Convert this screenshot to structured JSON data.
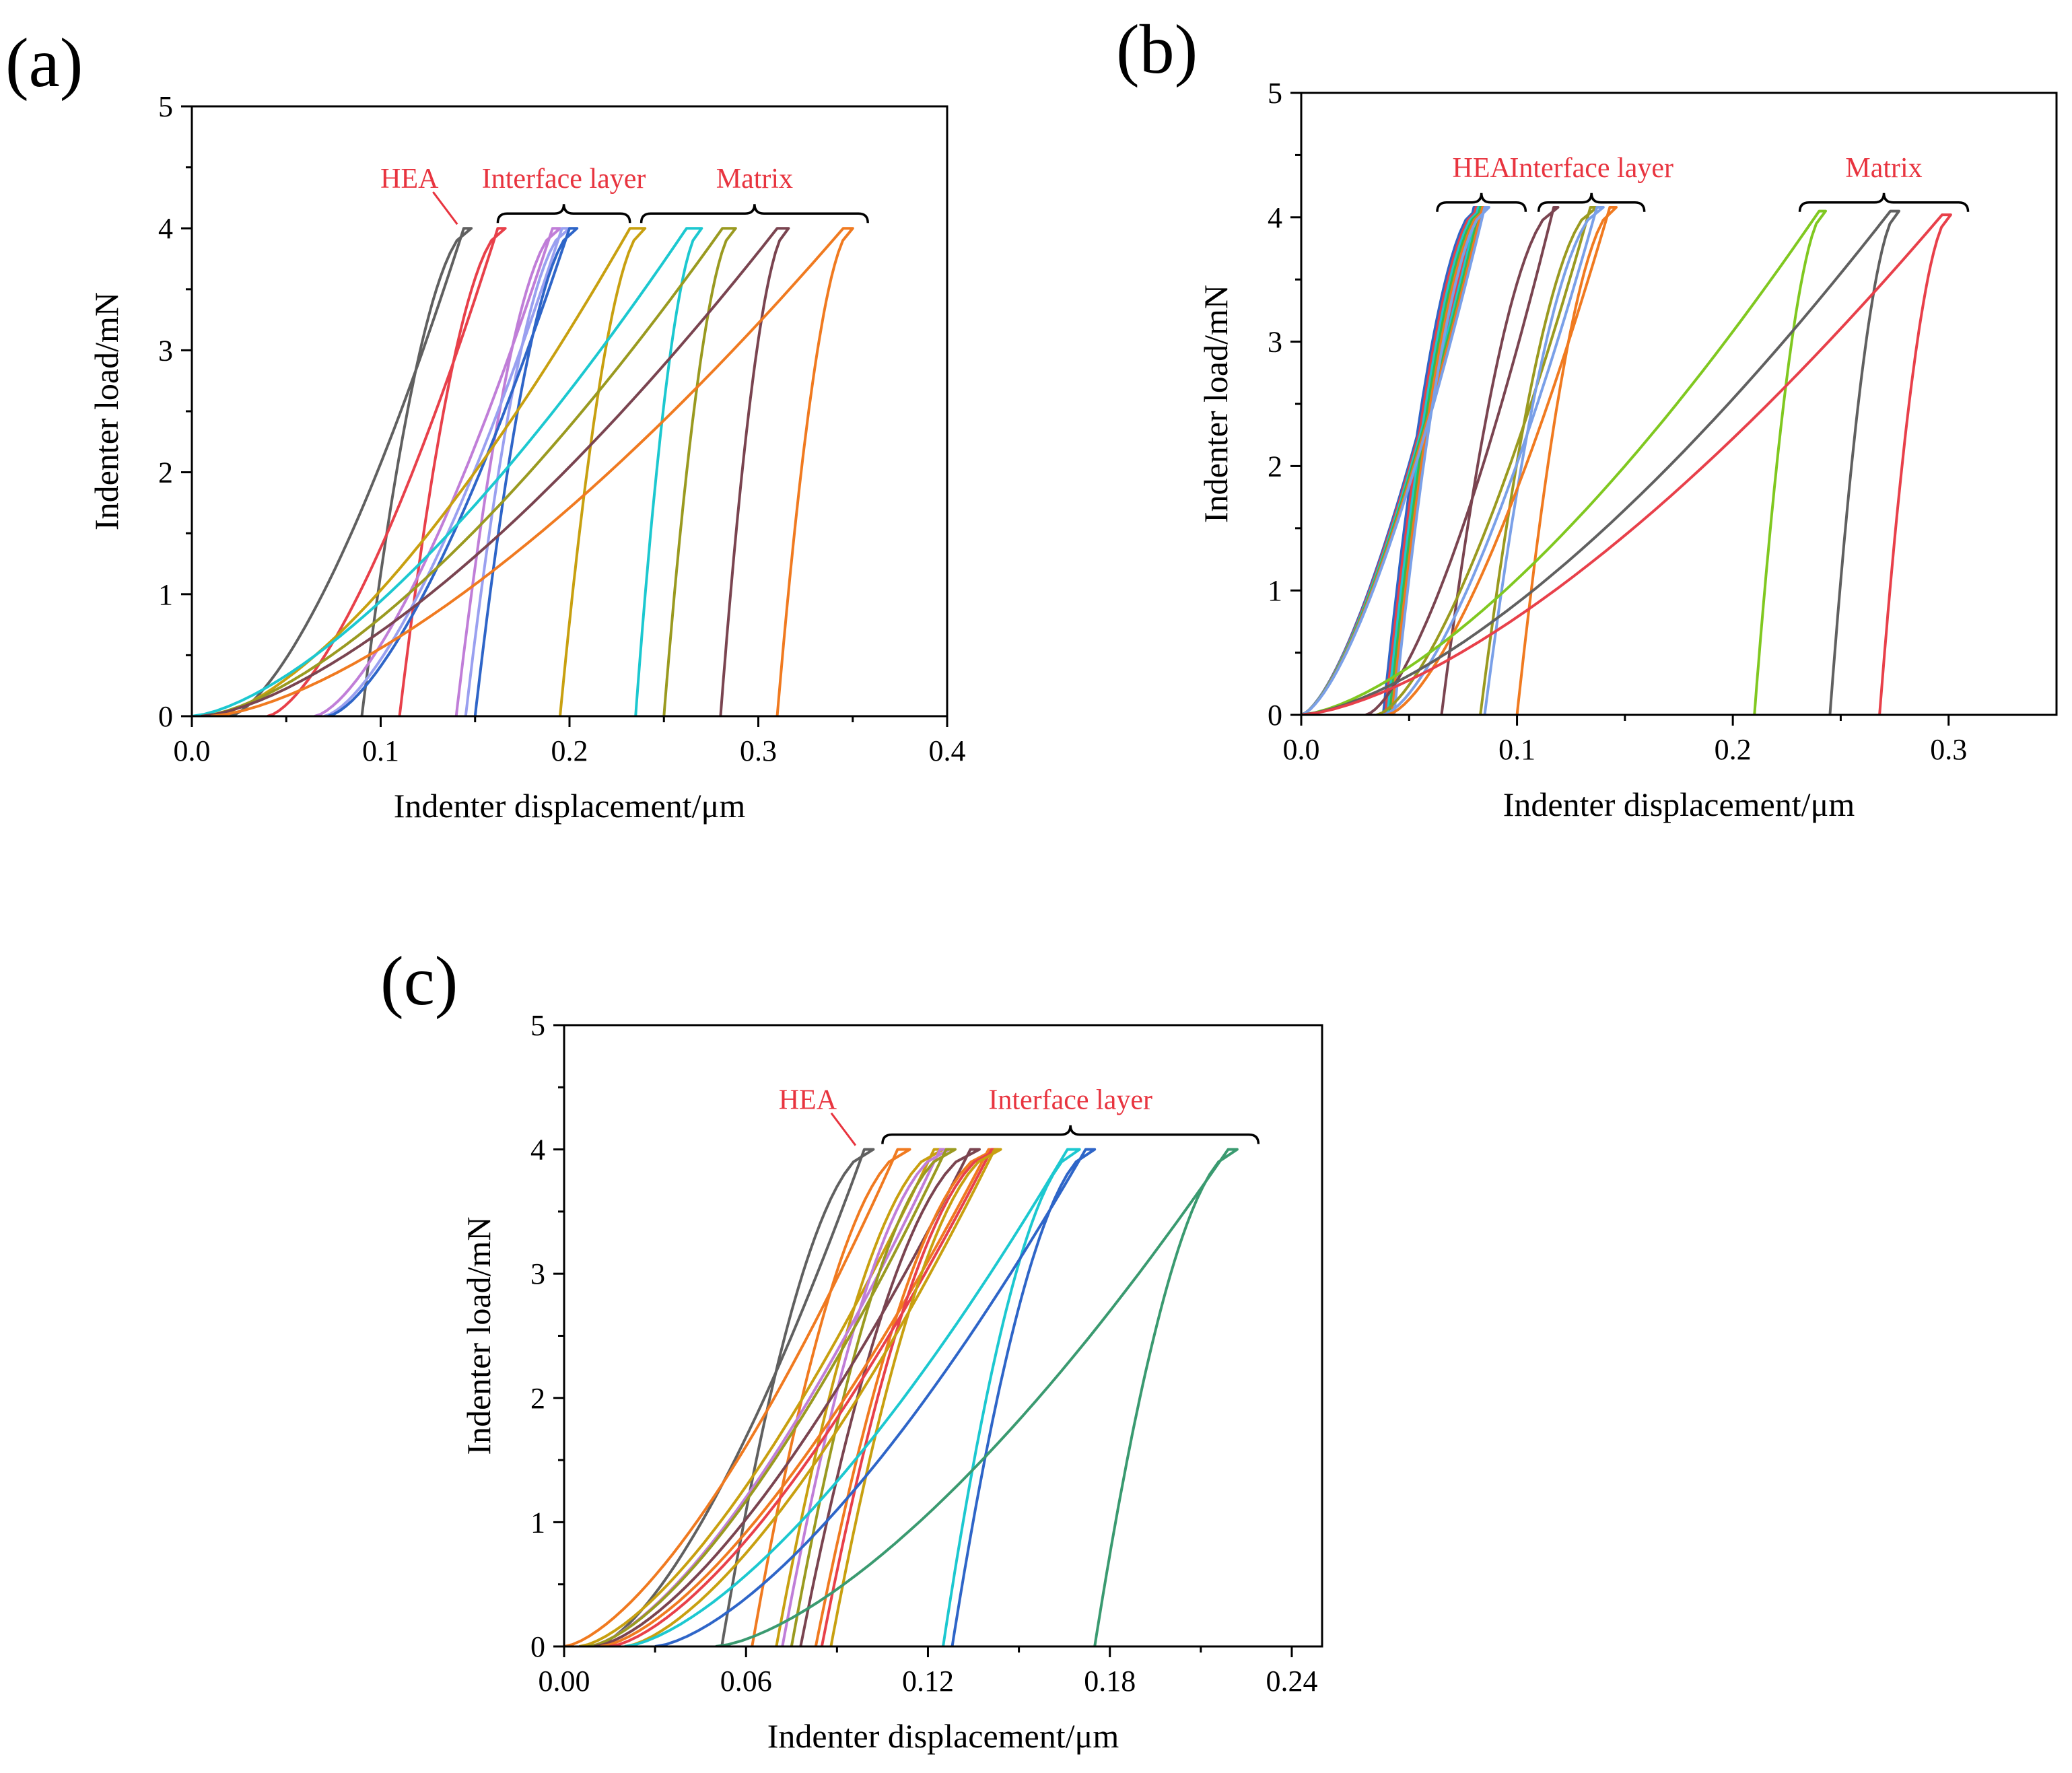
{
  "chart_data": [
    {
      "type": "line",
      "panel_label": "(a)",
      "xlabel": "Indenter displacement/μm",
      "ylabel": "Indenter load/mN",
      "xlim": [
        0,
        0.4
      ],
      "ylim": [
        0,
        5
      ],
      "x_ticks": [
        "0.0",
        "0.1",
        "0.2",
        "0.3",
        "0.4"
      ],
      "y_ticks": [
        "0",
        "1",
        "2",
        "3",
        "4",
        "5"
      ],
      "groups": [
        {
          "label": "HEA",
          "type": "pointer",
          "from": 0.142,
          "to": 0.142
        },
        {
          "label": "Interface layer",
          "type": "brace",
          "from": 0.162,
          "to": 0.232
        },
        {
          "label": "Matrix",
          "type": "brace",
          "from": 0.238,
          "to": 0.358
        }
      ],
      "series": [
        {
          "color": "#606060",
          "x0": 0.02,
          "x_peak": 0.144,
          "x_hold": 0.148,
          "x_final": 0.09,
          "peak": 4.0
        },
        {
          "color": "#e8404a",
          "x0": 0.04,
          "x_peak": 0.162,
          "x_hold": 0.166,
          "x_final": 0.11,
          "peak": 4.0
        },
        {
          "color": "#c07ed8",
          "x0": 0.065,
          "x_peak": 0.191,
          "x_hold": 0.195,
          "x_final": 0.14,
          "peak": 4.0
        },
        {
          "color": "#9aa0f0",
          "x0": 0.07,
          "x_peak": 0.196,
          "x_hold": 0.2,
          "x_final": 0.145,
          "peak": 4.0
        },
        {
          "color": "#2e65c8",
          "x0": 0.072,
          "x_peak": 0.2,
          "x_hold": 0.204,
          "x_final": 0.15,
          "peak": 4.0
        },
        {
          "color": "#c8a010",
          "x0": 0.01,
          "x_peak": 0.232,
          "x_hold": 0.24,
          "x_final": 0.195,
          "peak": 4.0
        },
        {
          "color": "#1cc8d0",
          "x0": 0.0,
          "x_peak": 0.262,
          "x_hold": 0.27,
          "x_final": 0.235,
          "peak": 4.0
        },
        {
          "color": "#9a9a20",
          "x0": 0.005,
          "x_peak": 0.281,
          "x_hold": 0.288,
          "x_final": 0.25,
          "peak": 4.0
        },
        {
          "color": "#7a4450",
          "x0": 0.005,
          "x_peak": 0.31,
          "x_hold": 0.316,
          "x_final": 0.28,
          "peak": 4.0
        },
        {
          "color": "#f07a20",
          "x0": 0.01,
          "x_peak": 0.345,
          "x_hold": 0.35,
          "x_final": 0.31,
          "peak": 4.0
        }
      ]
    },
    {
      "type": "line",
      "panel_label": "(b)",
      "xlabel": "Indenter displacement/μm",
      "ylabel": "Indenter load/mN",
      "xlim": [
        0,
        0.35
      ],
      "ylim": [
        0,
        5
      ],
      "x_ticks": [
        "0.0",
        "0.1",
        "0.2",
        "0.3"
      ],
      "y_ticks": [
        "0",
        "1",
        "2",
        "3",
        "4",
        "5"
      ],
      "groups": [
        {
          "label": "HEA",
          "type": "brace",
          "from": 0.063,
          "to": 0.104
        },
        {
          "label": "Interface layer",
          "type": "brace",
          "from": 0.11,
          "to": 0.159
        },
        {
          "label": "Matrix",
          "type": "brace",
          "from": 0.231,
          "to": 0.309
        }
      ],
      "series": [
        {
          "color": "#2e65c8",
          "x0": 0.0,
          "x_peak": 0.08,
          "x_hold": 0.082,
          "x_final": 0.038,
          "peak": 4.08
        },
        {
          "color": "#e8404a",
          "x0": 0.0,
          "x_peak": 0.081,
          "x_hold": 0.083,
          "x_final": 0.039,
          "peak": 4.08
        },
        {
          "color": "#1cc8d0",
          "x0": 0.0,
          "x_peak": 0.082,
          "x_hold": 0.084,
          "x_final": 0.04,
          "peak": 4.08
        },
        {
          "color": "#3ab84a",
          "x0": 0.0,
          "x_peak": 0.083,
          "x_hold": 0.085,
          "x_final": 0.041,
          "peak": 4.08
        },
        {
          "color": "#f07a20",
          "x0": 0.0,
          "x_peak": 0.084,
          "x_hold": 0.086,
          "x_final": 0.042,
          "peak": 4.08
        },
        {
          "color": "#7aa0e8",
          "x0": 0.0,
          "x_peak": 0.085,
          "x_hold": 0.087,
          "x_final": 0.043,
          "peak": 4.08
        },
        {
          "color": "#7a4450",
          "x0": 0.03,
          "x_peak": 0.117,
          "x_hold": 0.119,
          "x_final": 0.065,
          "peak": 4.08
        },
        {
          "color": "#9a9a20",
          "x0": 0.035,
          "x_peak": 0.134,
          "x_hold": 0.137,
          "x_final": 0.083,
          "peak": 4.08
        },
        {
          "color": "#7aa0e8",
          "x0": 0.038,
          "x_peak": 0.137,
          "x_hold": 0.14,
          "x_final": 0.085,
          "peak": 4.08
        },
        {
          "color": "#f07a20",
          "x0": 0.04,
          "x_peak": 0.143,
          "x_hold": 0.146,
          "x_final": 0.1,
          "peak": 4.08
        },
        {
          "color": "#80c820",
          "x0": 0.0,
          "x_peak": 0.24,
          "x_hold": 0.243,
          "x_final": 0.21,
          "peak": 4.05
        },
        {
          "color": "#606060",
          "x0": 0.0,
          "x_peak": 0.273,
          "x_hold": 0.277,
          "x_final": 0.245,
          "peak": 4.05
        },
        {
          "color": "#e8404a",
          "x0": 0.0,
          "x_peak": 0.297,
          "x_hold": 0.301,
          "x_final": 0.268,
          "peak": 4.02
        }
      ]
    },
    {
      "type": "line",
      "panel_label": "(c)",
      "xlabel": "Indenter displacement/μm",
      "ylabel": "Indenter load/mN",
      "xlim": [
        0,
        0.25
      ],
      "ylim": [
        0,
        5
      ],
      "x_ticks": [
        "0.00",
        "0.06",
        "0.12",
        "0.18",
        "0.24"
      ],
      "y_ticks": [
        "0",
        "1",
        "2",
        "3",
        "4",
        "5"
      ],
      "groups": [
        {
          "label": "HEA",
          "type": "pointer",
          "from": 0.097,
          "to": 0.097
        },
        {
          "label": "Interface layer",
          "type": "brace",
          "from": 0.105,
          "to": 0.229
        }
      ],
      "series": [
        {
          "color": "#606060",
          "x0": 0.01,
          "x_peak": 0.099,
          "x_hold": 0.102,
          "x_final": 0.052,
          "peak": 4.0
        },
        {
          "color": "#f07a20",
          "x0": 0.0,
          "x_peak": 0.11,
          "x_hold": 0.114,
          "x_final": 0.062,
          "peak": 4.0
        },
        {
          "color": "#c8a010",
          "x0": 0.005,
          "x_peak": 0.122,
          "x_hold": 0.125,
          "x_final": 0.07,
          "peak": 4.0
        },
        {
          "color": "#c07ed8",
          "x0": 0.008,
          "x_peak": 0.124,
          "x_hold": 0.127,
          "x_final": 0.072,
          "peak": 4.0
        },
        {
          "color": "#9a9a20",
          "x0": 0.008,
          "x_peak": 0.126,
          "x_hold": 0.129,
          "x_final": 0.075,
          "peak": 4.0
        },
        {
          "color": "#7a4450",
          "x0": 0.01,
          "x_peak": 0.134,
          "x_hold": 0.137,
          "x_final": 0.078,
          "peak": 4.0
        },
        {
          "color": "#f07a20",
          "x0": 0.012,
          "x_peak": 0.14,
          "x_hold": 0.142,
          "x_final": 0.083,
          "peak": 4.0
        },
        {
          "color": "#e8404a",
          "x0": 0.015,
          "x_peak": 0.141,
          "x_hold": 0.143,
          "x_final": 0.085,
          "peak": 4.0
        },
        {
          "color": "#c8a010",
          "x0": 0.02,
          "x_peak": 0.142,
          "x_hold": 0.144,
          "x_final": 0.088,
          "peak": 4.0
        },
        {
          "color": "#1cc8d0",
          "x0": 0.02,
          "x_peak": 0.166,
          "x_hold": 0.17,
          "x_final": 0.125,
          "peak": 4.0
        },
        {
          "color": "#2e65c8",
          "x0": 0.03,
          "x_peak": 0.172,
          "x_hold": 0.175,
          "x_final": 0.128,
          "peak": 4.0
        },
        {
          "color": "#3a9a70",
          "x0": 0.05,
          "x_peak": 0.219,
          "x_hold": 0.222,
          "x_final": 0.175,
          "peak": 4.0
        }
      ]
    }
  ]
}
